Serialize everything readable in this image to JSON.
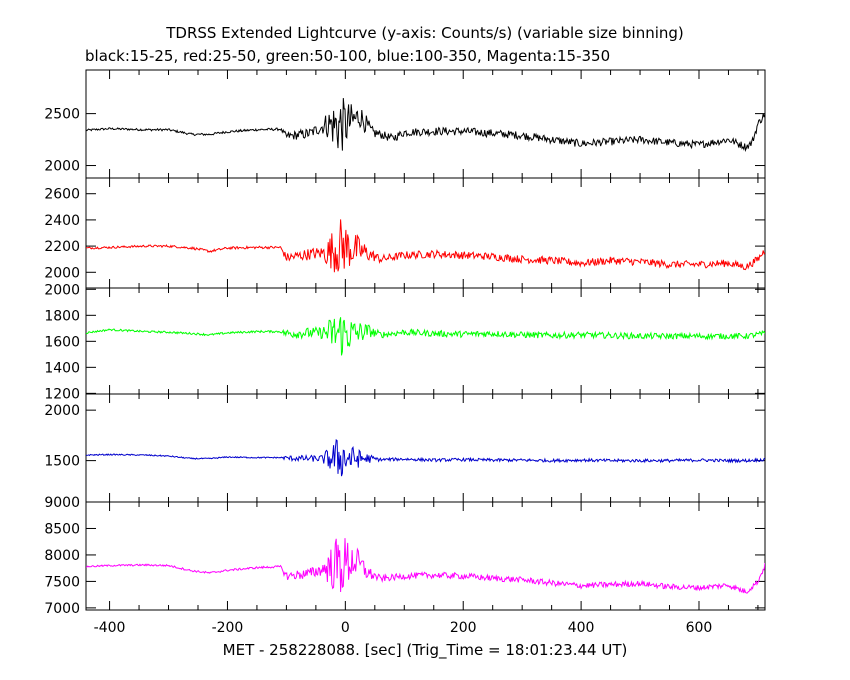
{
  "chart_data": {
    "type": "line",
    "title": "TDRSS Extended Lightcurve (y-axis: Counts/s) (variable size binning)",
    "subtitle": "black:15-25, red:25-50, green:50-100, blue:100-350, Magenta:15-350",
    "xlabel": "MET - 258228088. [sec] (Trig_Time = 18:01:23.44 UT)",
    "xlim": [
      -440,
      712
    ],
    "xticks": [
      -400,
      -200,
      0,
      200,
      400,
      600
    ],
    "grid": false,
    "legend": "none",
    "panels": [
      {
        "band": "black:15-25",
        "color": "#000000",
        "ylim": [
          1880,
          2920
        ],
        "yticks": [
          2000,
          2500
        ],
        "profile": [
          [
            -440,
            2340
          ],
          [
            -400,
            2355
          ],
          [
            -340,
            2345
          ],
          [
            -300,
            2345
          ],
          [
            -260,
            2300
          ],
          [
            -230,
            2300
          ],
          [
            -200,
            2325
          ],
          [
            -150,
            2345
          ],
          [
            -110,
            2350
          ],
          [
            -100,
            2280
          ],
          [
            -60,
            2310
          ],
          [
            -30,
            2400
          ],
          [
            -10,
            2380
          ],
          [
            10,
            2420
          ],
          [
            25,
            2480
          ],
          [
            45,
            2320
          ],
          [
            60,
            2300
          ],
          [
            80,
            2260
          ],
          [
            100,
            2320
          ],
          [
            150,
            2330
          ],
          [
            200,
            2330
          ],
          [
            250,
            2310
          ],
          [
            300,
            2290
          ],
          [
            350,
            2250
          ],
          [
            400,
            2210
          ],
          [
            450,
            2230
          ],
          [
            500,
            2250
          ],
          [
            550,
            2220
          ],
          [
            600,
            2200
          ],
          [
            650,
            2250
          ],
          [
            680,
            2180
          ],
          [
            690,
            2220
          ],
          [
            700,
            2400
          ],
          [
            712,
            2500
          ]
        ],
        "noise": [
          [
            -440,
            10
          ],
          [
            -110,
            12
          ],
          [
            -100,
            40
          ],
          [
            -40,
            60
          ],
          [
            -10,
            300
          ],
          [
            15,
            150
          ],
          [
            45,
            60
          ],
          [
            60,
            40
          ],
          [
            712,
            35
          ]
        ]
      },
      {
        "band": "red:25-50",
        "color": "#ff0000",
        "ylim": [
          1880,
          2720
        ],
        "yticks": [
          2000,
          2200,
          2400,
          2600
        ],
        "profile": [
          [
            -440,
            2185
          ],
          [
            -400,
            2190
          ],
          [
            -340,
            2200
          ],
          [
            -300,
            2200
          ],
          [
            -260,
            2185
          ],
          [
            -230,
            2160
          ],
          [
            -200,
            2185
          ],
          [
            -150,
            2190
          ],
          [
            -110,
            2190
          ],
          [
            -100,
            2110
          ],
          [
            -60,
            2140
          ],
          [
            -30,
            2150
          ],
          [
            -10,
            2200
          ],
          [
            15,
            2180
          ],
          [
            40,
            2140
          ],
          [
            60,
            2100
          ],
          [
            100,
            2130
          ],
          [
            150,
            2140
          ],
          [
            200,
            2130
          ],
          [
            250,
            2120
          ],
          [
            300,
            2100
          ],
          [
            350,
            2090
          ],
          [
            400,
            2070
          ],
          [
            450,
            2090
          ],
          [
            500,
            2080
          ],
          [
            550,
            2060
          ],
          [
            600,
            2060
          ],
          [
            650,
            2070
          ],
          [
            680,
            2040
          ],
          [
            700,
            2100
          ],
          [
            712,
            2170
          ]
        ],
        "noise": [
          [
            -440,
            8
          ],
          [
            -110,
            10
          ],
          [
            -100,
            35
          ],
          [
            -40,
            50
          ],
          [
            -10,
            230
          ],
          [
            15,
            130
          ],
          [
            45,
            45
          ],
          [
            60,
            30
          ],
          [
            712,
            28
          ]
        ]
      },
      {
        "band": "green:50-100",
        "color": "#00ff00",
        "ylim": [
          1195,
          2010
        ],
        "yticks": [
          1200,
          1400,
          1600,
          1800,
          2000
        ],
        "profile": [
          [
            -440,
            1665
          ],
          [
            -400,
            1690
          ],
          [
            -340,
            1675
          ],
          [
            -300,
            1670
          ],
          [
            -260,
            1660
          ],
          [
            -230,
            1650
          ],
          [
            -200,
            1665
          ],
          [
            -150,
            1675
          ],
          [
            -110,
            1675
          ],
          [
            -100,
            1660
          ],
          [
            -60,
            1665
          ],
          [
            -30,
            1665
          ],
          [
            -10,
            1660
          ],
          [
            15,
            1660
          ],
          [
            40,
            1680
          ],
          [
            60,
            1650
          ],
          [
            100,
            1670
          ],
          [
            150,
            1660
          ],
          [
            200,
            1655
          ],
          [
            250,
            1660
          ],
          [
            300,
            1650
          ],
          [
            350,
            1645
          ],
          [
            400,
            1650
          ],
          [
            450,
            1645
          ],
          [
            500,
            1640
          ],
          [
            550,
            1640
          ],
          [
            600,
            1640
          ],
          [
            650,
            1640
          ],
          [
            680,
            1640
          ],
          [
            712,
            1660
          ]
        ],
        "noise": [
          [
            -440,
            7
          ],
          [
            -110,
            8
          ],
          [
            -100,
            35
          ],
          [
            -40,
            45
          ],
          [
            -10,
            200
          ],
          [
            15,
            110
          ],
          [
            45,
            40
          ],
          [
            60,
            25
          ],
          [
            712,
            22
          ]
        ]
      },
      {
        "band": "blue:100-350",
        "color": "#0000cc",
        "ylim": [
          1090,
          2160
        ],
        "yticks": [
          1500,
          2000
        ],
        "profile": [
          [
            -440,
            1555
          ],
          [
            -400,
            1560
          ],
          [
            -340,
            1555
          ],
          [
            -300,
            1545
          ],
          [
            -260,
            1520
          ],
          [
            -230,
            1520
          ],
          [
            -200,
            1535
          ],
          [
            -150,
            1530
          ],
          [
            -110,
            1530
          ],
          [
            -100,
            1525
          ],
          [
            -60,
            1520
          ],
          [
            -30,
            1520
          ],
          [
            -10,
            1530
          ],
          [
            15,
            1520
          ],
          [
            40,
            1520
          ],
          [
            60,
            1510
          ],
          [
            100,
            1515
          ],
          [
            150,
            1505
          ],
          [
            200,
            1510
          ],
          [
            250,
            1505
          ],
          [
            300,
            1505
          ],
          [
            350,
            1500
          ],
          [
            400,
            1505
          ],
          [
            450,
            1500
          ],
          [
            500,
            1500
          ],
          [
            550,
            1500
          ],
          [
            600,
            1505
          ],
          [
            650,
            1500
          ],
          [
            680,
            1500
          ],
          [
            712,
            1510
          ]
        ],
        "noise": [
          [
            -440,
            6
          ],
          [
            -110,
            6
          ],
          [
            -100,
            25
          ],
          [
            -40,
            35
          ],
          [
            -10,
            230
          ],
          [
            15,
            110
          ],
          [
            45,
            35
          ],
          [
            60,
            15
          ],
          [
            712,
            15
          ]
        ]
      },
      {
        "band": "Magenta:15-350",
        "color": "#ff00ff",
        "ylim": [
          6960,
          9000
        ],
        "yticks": [
          7000,
          7500,
          8000,
          8500,
          9000
        ],
        "profile": [
          [
            -440,
            7780
          ],
          [
            -400,
            7800
          ],
          [
            -340,
            7810
          ],
          [
            -300,
            7800
          ],
          [
            -260,
            7700
          ],
          [
            -230,
            7660
          ],
          [
            -200,
            7710
          ],
          [
            -150,
            7760
          ],
          [
            -110,
            7780
          ],
          [
            -100,
            7600
          ],
          [
            -60,
            7650
          ],
          [
            -30,
            7760
          ],
          [
            -10,
            7800
          ],
          [
            15,
            7900
          ],
          [
            40,
            7650
          ],
          [
            60,
            7550
          ],
          [
            100,
            7600
          ],
          [
            150,
            7620
          ],
          [
            200,
            7600
          ],
          [
            250,
            7560
          ],
          [
            300,
            7530
          ],
          [
            350,
            7470
          ],
          [
            400,
            7420
          ],
          [
            450,
            7440
          ],
          [
            500,
            7460
          ],
          [
            550,
            7400
          ],
          [
            600,
            7380
          ],
          [
            650,
            7430
          ],
          [
            680,
            7300
          ],
          [
            700,
            7500
          ],
          [
            712,
            7800
          ]
        ],
        "noise": [
          [
            -440,
            15
          ],
          [
            -110,
            20
          ],
          [
            -100,
            80
          ],
          [
            -40,
            120
          ],
          [
            -10,
            650
          ],
          [
            15,
            320
          ],
          [
            45,
            100
          ],
          [
            60,
            60
          ],
          [
            712,
            50
          ]
        ]
      }
    ]
  }
}
